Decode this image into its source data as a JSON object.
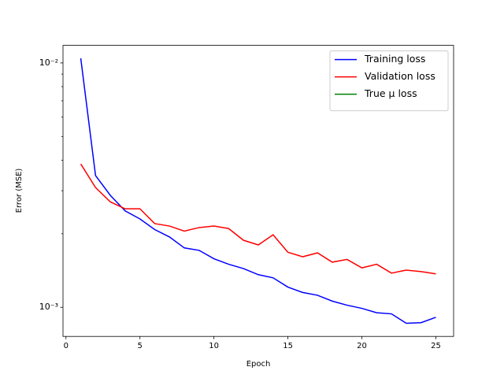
{
  "chart_data": {
    "type": "line",
    "xlabel": "Epoch",
    "ylabel": "Error (MSE)",
    "x": [
      1,
      2,
      3,
      4,
      5,
      6,
      7,
      8,
      9,
      10,
      11,
      12,
      13,
      14,
      15,
      16,
      17,
      18,
      19,
      20,
      21,
      22,
      23,
      24,
      25
    ],
    "series": [
      {
        "name": "Training loss",
        "color": "#0000ff",
        "values": [
          0.01045,
          0.00346,
          0.00287,
          0.00248,
          0.0023,
          0.00208,
          0.00194,
          0.00175,
          0.00171,
          0.00158,
          0.0015,
          0.00144,
          0.00136,
          0.00132,
          0.00121,
          0.00115,
          0.00112,
          0.00106,
          0.00102,
          0.00099,
          0.00095,
          0.00094,
          0.00086,
          0.000865,
          0.00091
        ]
      },
      {
        "name": "Validation loss",
        "color": "#ff0000",
        "values": [
          0.00386,
          0.00309,
          0.0027,
          0.00253,
          0.00253,
          0.0022,
          0.00215,
          0.00205,
          0.00212,
          0.00215,
          0.0021,
          0.00188,
          0.0018,
          0.00198,
          0.00168,
          0.00161,
          0.00167,
          0.00153,
          0.00157,
          0.00145,
          0.0015,
          0.00138,
          0.00142,
          0.0014,
          0.00137
        ]
      },
      {
        "name": "True μ loss",
        "color": "#008000",
        "values": [
          null,
          null,
          null,
          null,
          null,
          null,
          null,
          null,
          null,
          null,
          null,
          null,
          null,
          null,
          null,
          null,
          null,
          null,
          null,
          null,
          null,
          null,
          null,
          null,
          null
        ]
      }
    ],
    "xlim": [
      -0.2,
      26.2
    ],
    "xticks": [
      0,
      5,
      10,
      15,
      20,
      25
    ],
    "ylim": [
      0.00076,
      0.0118
    ],
    "yscale": "log",
    "yticks": [
      {
        "value": 0.001,
        "label": "10⁻³"
      },
      {
        "value": 0.01,
        "label": "10⁻²"
      }
    ],
    "yminorticks": [
      0.002,
      0.003,
      0.004,
      0.005,
      0.006,
      0.007,
      0.008,
      0.009
    ],
    "legend": "upper right",
    "grid": false
  }
}
